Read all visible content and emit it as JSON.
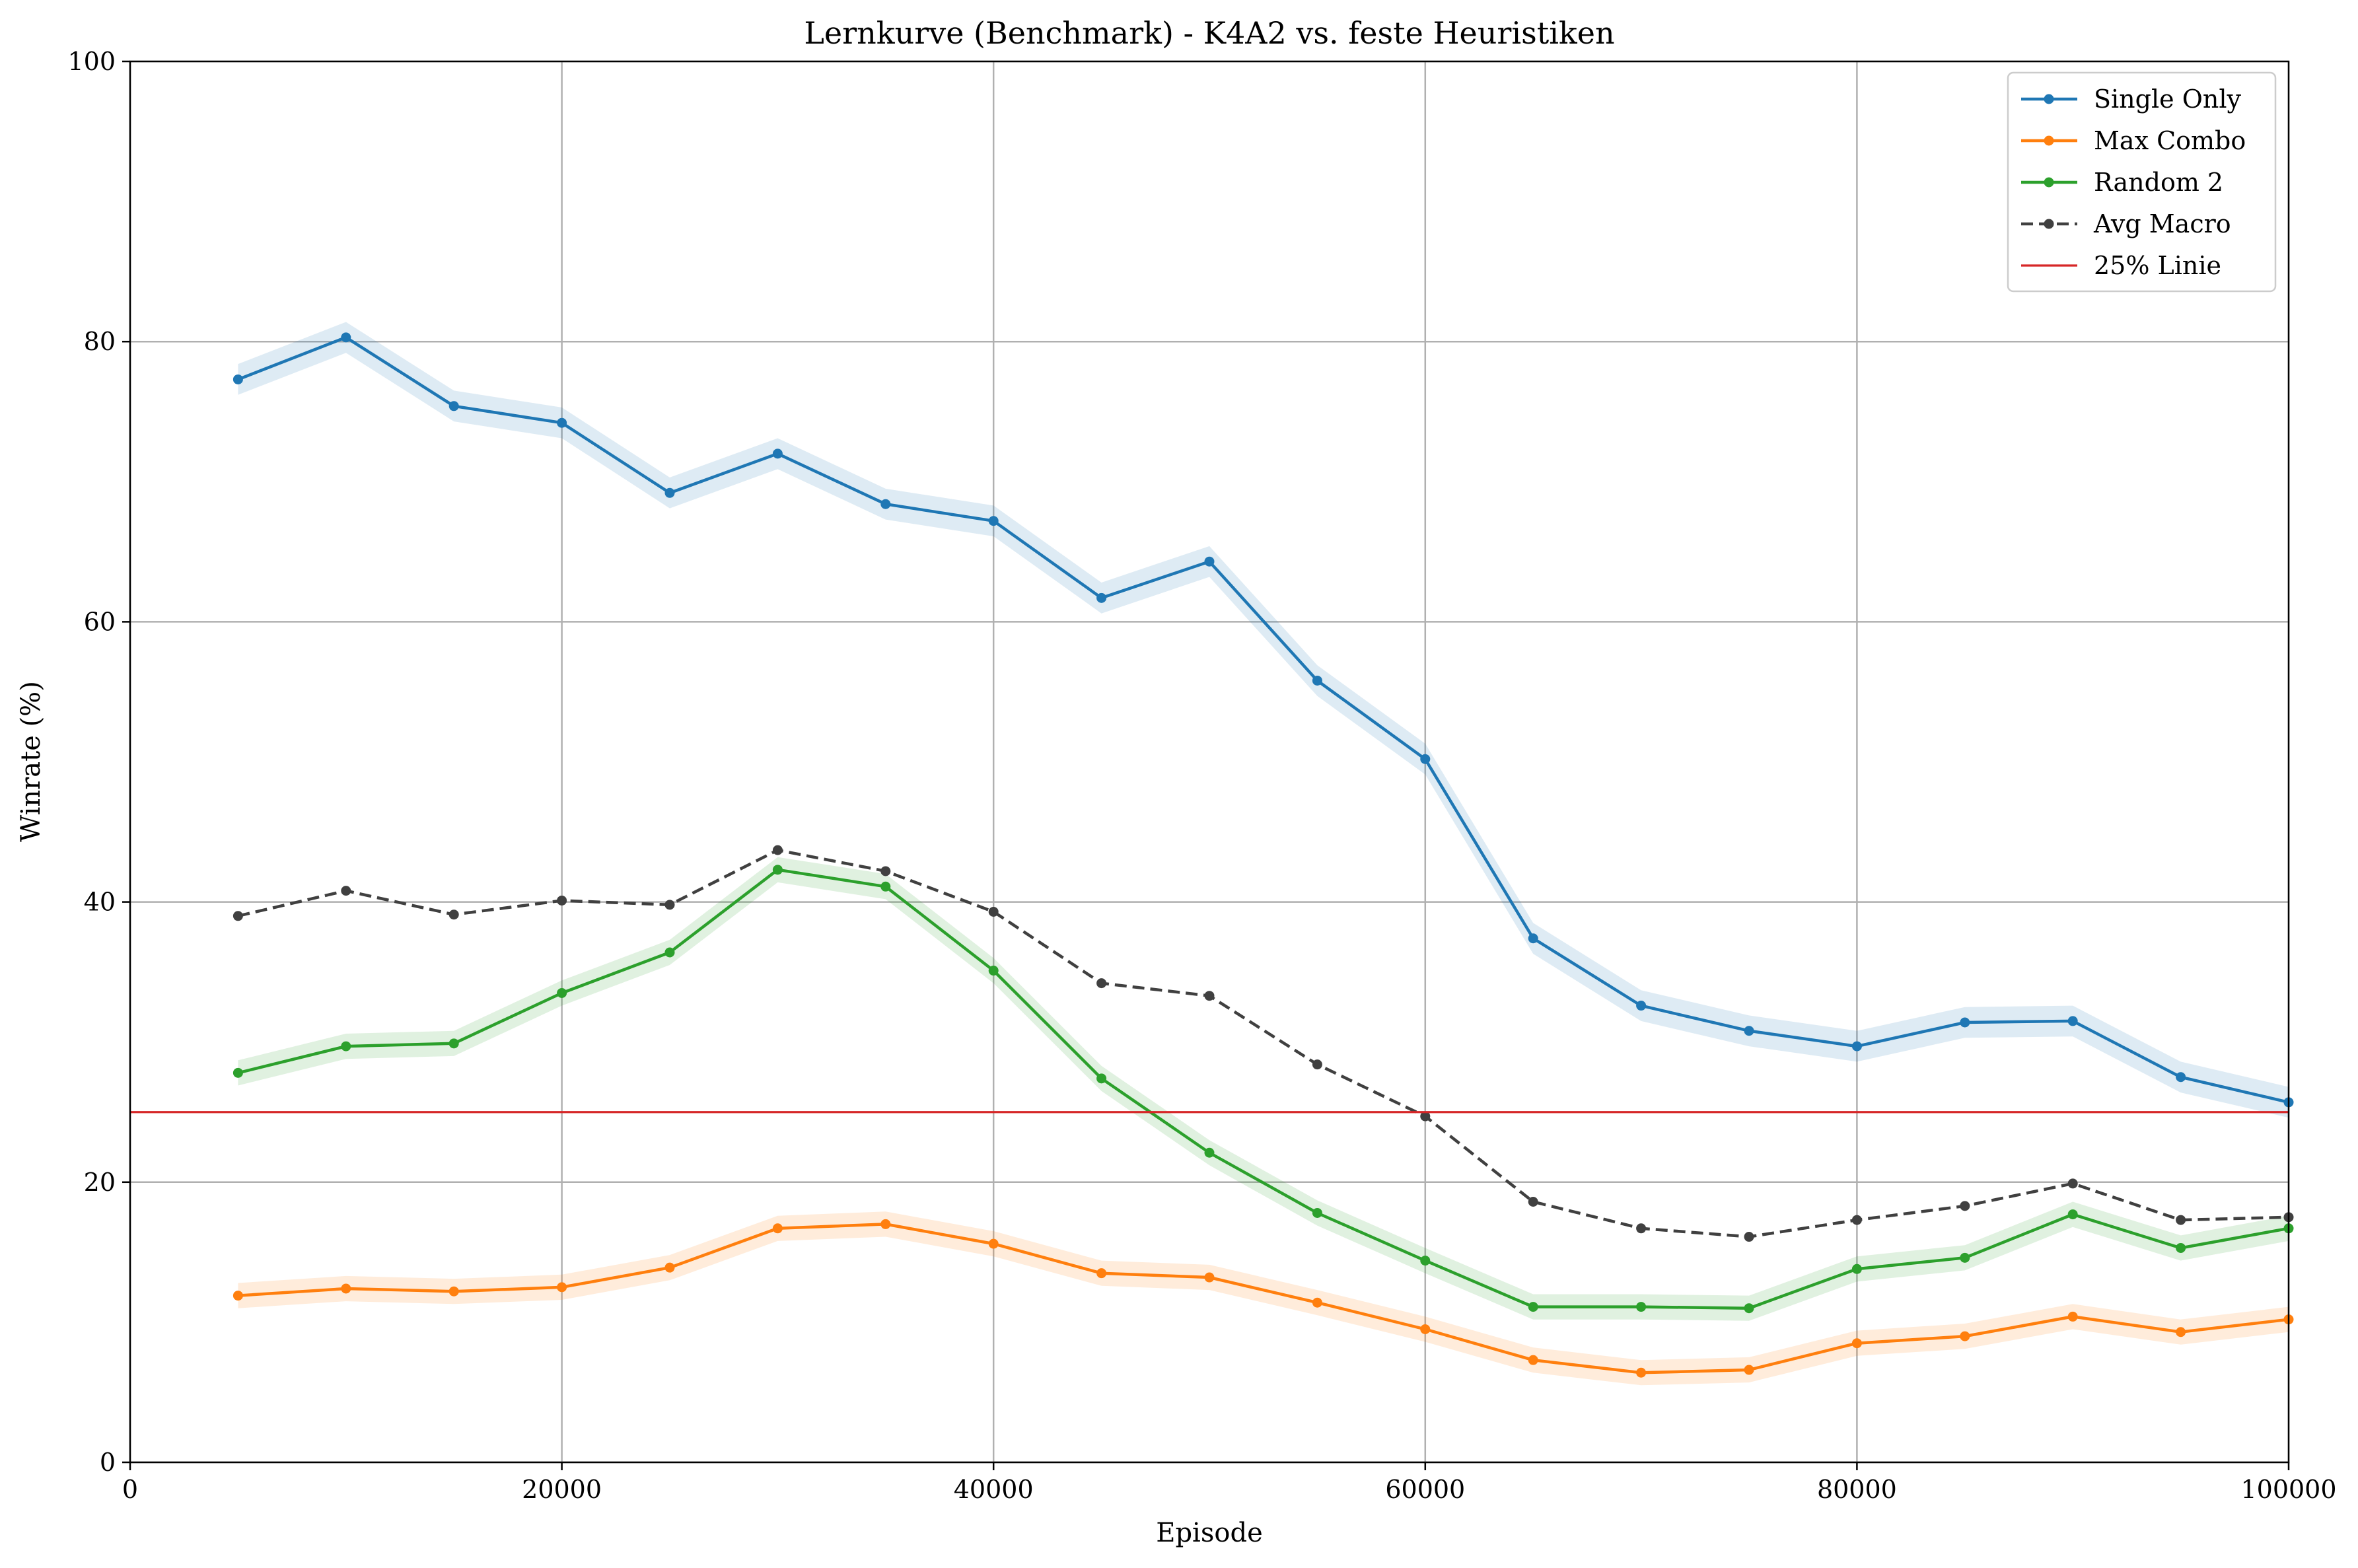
{
  "chart_data": {
    "type": "line",
    "title": "Lernkurve (Benchmark) - K4A2 vs. feste Heuristiken",
    "xlabel": "Episode",
    "ylabel": "Winrate (%)",
    "xlim": [
      0,
      100000
    ],
    "ylim": [
      0,
      100
    ],
    "xticks": [
      "0",
      "20000",
      "40000",
      "60000",
      "80000",
      "100000"
    ],
    "yticks": [
      "0",
      "20",
      "40",
      "60",
      "80",
      "100"
    ],
    "grid": true,
    "legend_position": "top-right",
    "x": [
      5000,
      10000,
      15000,
      20000,
      25000,
      30000,
      35000,
      40000,
      45000,
      50000,
      55000,
      60000,
      65000,
      70000,
      75000,
      80000,
      85000,
      90000,
      95000,
      100000
    ],
    "series": [
      {
        "name": "Single Only",
        "color": "#1f77b4",
        "style": "solid",
        "values": [
          77.3,
          80.3,
          75.4,
          74.2,
          69.2,
          72.0,
          68.4,
          67.2,
          61.7,
          64.3,
          55.8,
          50.2,
          37.4,
          32.6,
          30.8,
          29.7,
          31.4,
          31.5,
          27.5,
          25.7
        ],
        "band": 1.1
      },
      {
        "name": "Max Combo",
        "color": "#ff7f0e",
        "style": "solid",
        "values": [
          11.9,
          12.4,
          12.2,
          12.5,
          13.9,
          16.7,
          17.0,
          15.6,
          13.5,
          13.2,
          11.4,
          9.5,
          7.3,
          6.4,
          6.6,
          8.5,
          9.0,
          10.4,
          9.3,
          10.2
        ],
        "band": 0.9
      },
      {
        "name": "Random 2",
        "color": "#2ca02c",
        "style": "solid",
        "values": [
          27.8,
          29.7,
          29.9,
          33.5,
          36.4,
          42.3,
          41.1,
          35.1,
          27.4,
          22.1,
          17.8,
          14.4,
          11.1,
          11.1,
          11.0,
          13.8,
          14.6,
          17.7,
          15.3,
          16.7
        ],
        "band": 0.9
      },
      {
        "name": "Avg Macro",
        "color": "#404040",
        "style": "dashed",
        "values": [
          39.0,
          40.8,
          39.1,
          40.1,
          39.8,
          43.7,
          42.2,
          39.3,
          34.2,
          33.3,
          28.4,
          24.7,
          18.6,
          16.7,
          16.1,
          17.3,
          18.3,
          19.9,
          17.3,
          17.5
        ]
      },
      {
        "name": "25% Linie",
        "color": "#d62728",
        "style": "solid",
        "hline": 25
      }
    ]
  }
}
